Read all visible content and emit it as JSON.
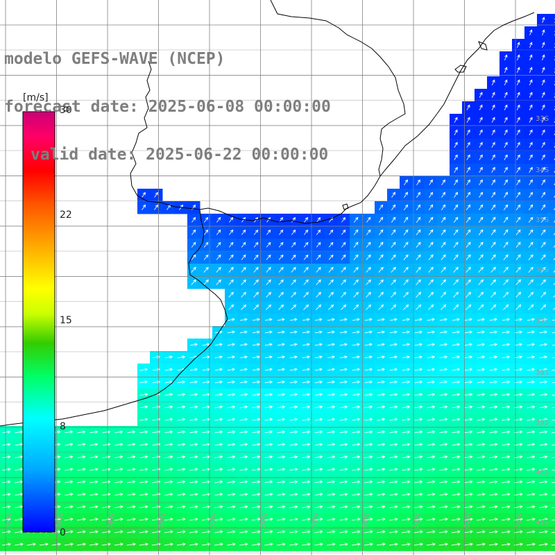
{
  "title": {
    "model": "modelo GEFS-WAVE (NCEP)",
    "forecast": "forecast date: 2025-06-08 00:00:00",
    "valid": "valid date: 2025-06-22 00:00:00"
  },
  "colorbar": {
    "unit": "[m/s]",
    "ticks": [
      "30",
      "22",
      "15",
      "8",
      "0"
    ],
    "tick_values": [
      30,
      22,
      15,
      8,
      0
    ],
    "range": [
      0,
      30
    ],
    "gradient": [
      "#0000ff",
      "#00aaff",
      "#00ffff",
      "#00ff66",
      "#33cc00",
      "#ccff00",
      "#ffff00",
      "#ffaa00",
      "#ff5500",
      "#ff0000",
      "#ff0066",
      "#cc0077"
    ]
  },
  "map": {
    "lat_labels": [
      "33S",
      "34S",
      "35S",
      "36S",
      "37S",
      "38S",
      "39S",
      "40S",
      "41S"
    ],
    "lon_labels": [
      "61W",
      "60W",
      "59W",
      "58W",
      "57W",
      "56W",
      "55W",
      "54W",
      "53W",
      "52W",
      "51W"
    ],
    "land_color": "#ffffff",
    "grid_color": "#808080",
    "arrow_color": "#ffffff",
    "field": "wind speed",
    "min_speed": 0,
    "max_speed": 30
  }
}
